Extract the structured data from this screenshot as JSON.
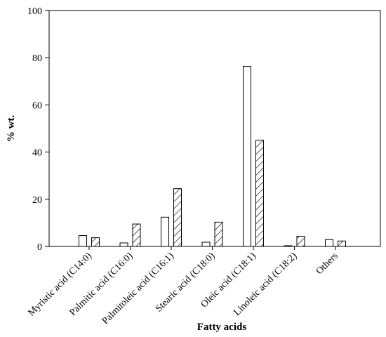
{
  "chart_data": {
    "type": "bar",
    "title": "",
    "xlabel": "Fatty acids",
    "ylabel": "% wt.",
    "ylim": [
      0,
      100
    ],
    "yticks": [
      0,
      20,
      40,
      60,
      80,
      100
    ],
    "grid": false,
    "legend": "none",
    "categories": [
      "Myristic acid (C14:0)",
      "Palmitic acid (C16:0)",
      "Palmitoleic acid (C16:1)",
      "Stearic acid (C18:0)",
      "Oleic acid (C18:1)",
      "Linoleic acid (C18:2)",
      "Others"
    ],
    "series": [
      {
        "fill": "plain-white",
        "values": [
          4.6,
          1.5,
          12.4,
          1.8,
          76.3,
          0.3,
          2.9
        ]
      },
      {
        "fill": "diagonal-hatch",
        "values": [
          3.7,
          9.5,
          24.5,
          10.3,
          45.0,
          4.3,
          2.3
        ]
      }
    ],
    "colors": {
      "axis": "#000000",
      "bar_fill": "#ffffff",
      "bar_stroke": "#000000"
    }
  }
}
